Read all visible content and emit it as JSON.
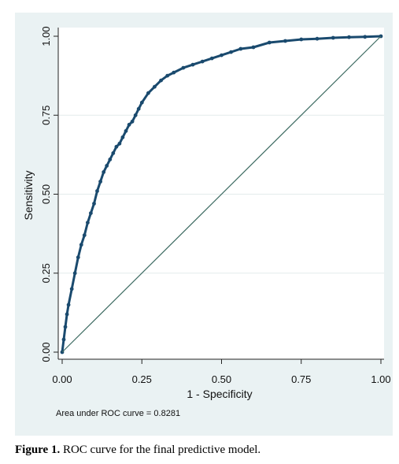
{
  "chart_data": {
    "type": "line",
    "xlabel": "1 - Specificity",
    "ylabel": "Sensitivity",
    "xlim": [
      0,
      1
    ],
    "ylim": [
      0,
      1
    ],
    "xticks": [
      "0.00",
      "0.25",
      "0.50",
      "0.75",
      "1.00"
    ],
    "yticks": [
      "0.00",
      "0.25",
      "0.50",
      "0.75",
      "1.00"
    ],
    "grid": "y-only",
    "annotation": "Area under ROC curve = 0.8281",
    "colors": {
      "roc": "#1a4a6e",
      "reference": "#3d6b62",
      "panel": "#eaf2f3",
      "grid": "#e4ecec"
    },
    "series": [
      {
        "kind": "roc-curve",
        "x": [
          0.0,
          0.005,
          0.01,
          0.015,
          0.02,
          0.03,
          0.04,
          0.05,
          0.06,
          0.07,
          0.08,
          0.09,
          0.1,
          0.11,
          0.12,
          0.13,
          0.14,
          0.15,
          0.16,
          0.17,
          0.18,
          0.19,
          0.2,
          0.21,
          0.22,
          0.23,
          0.24,
          0.25,
          0.27,
          0.29,
          0.31,
          0.33,
          0.35,
          0.38,
          0.41,
          0.44,
          0.47,
          0.5,
          0.53,
          0.56,
          0.6,
          0.65,
          0.7,
          0.75,
          0.8,
          0.85,
          0.9,
          0.95,
          1.0
        ],
        "y": [
          0.0,
          0.04,
          0.08,
          0.12,
          0.15,
          0.2,
          0.25,
          0.3,
          0.34,
          0.37,
          0.41,
          0.44,
          0.47,
          0.51,
          0.54,
          0.57,
          0.59,
          0.61,
          0.63,
          0.65,
          0.66,
          0.68,
          0.7,
          0.72,
          0.73,
          0.75,
          0.77,
          0.79,
          0.82,
          0.84,
          0.86,
          0.875,
          0.885,
          0.9,
          0.91,
          0.92,
          0.93,
          0.94,
          0.95,
          0.96,
          0.965,
          0.98,
          0.985,
          0.99,
          0.992,
          0.995,
          0.997,
          0.998,
          1.0
        ]
      },
      {
        "kind": "reference-line",
        "x": [
          0,
          1
        ],
        "y": [
          0,
          1
        ]
      }
    ]
  },
  "caption": {
    "label": "Figure 1.",
    "text": " ROC curve for the final predictive model."
  }
}
